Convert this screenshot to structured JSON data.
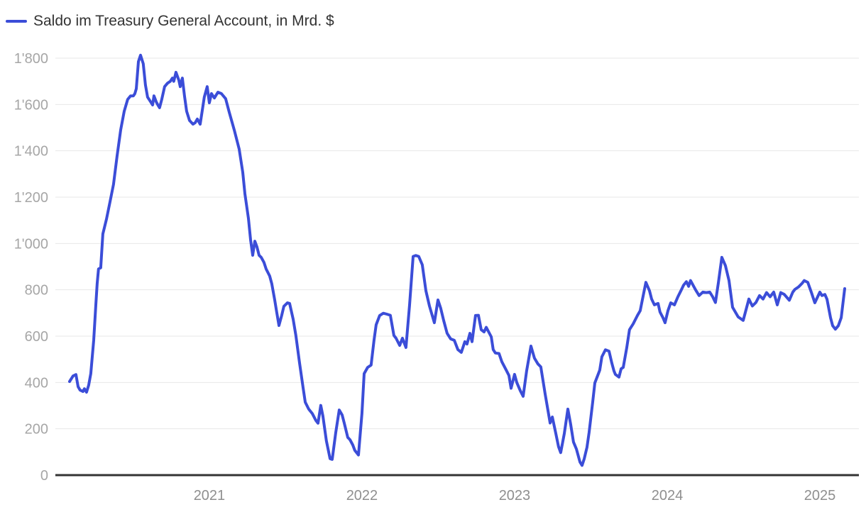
{
  "legend": {
    "label": "Saldo im Treasury General Account, in Mrd. $"
  },
  "colors": {
    "line": "#3b4dd8",
    "grid": "#e7e7e7",
    "axis": "#333333",
    "y_tick_text": "#a6a6a6",
    "x_tick_text": "#8f8f8f",
    "legend_text": "#333333",
    "background": "#ffffff"
  },
  "chart_data": {
    "type": "line",
    "title": "Saldo im Treasury General Account, in Mrd. $",
    "xlabel": "",
    "ylabel": "",
    "unit": "Mrd. $",
    "grid": "horizontal",
    "legend_position": "top-left",
    "xlim": [
      2019.991,
      2025.256
    ],
    "ylim": [
      0,
      1800
    ],
    "x_ticks": [
      2021,
      2022,
      2023,
      2024,
      2025
    ],
    "x_tick_labels": [
      "2021",
      "2022",
      "2023",
      "2024",
      "2025"
    ],
    "y_ticks": [
      0,
      200,
      400,
      600,
      800,
      1000,
      1200,
      1400,
      1600,
      1800
    ],
    "y_tick_labels": [
      "0",
      "200",
      "400",
      "600",
      "800",
      "1'000",
      "1'200",
      "1'400",
      "1'600",
      "1'800"
    ],
    "series": [
      {
        "name": "Saldo im Treasury General Account, in Mrd. $",
        "color": "#3b4dd8",
        "points": [
          [
            2020.084,
            404
          ],
          [
            2020.107,
            428
          ],
          [
            2020.126,
            434
          ],
          [
            2020.14,
            382
          ],
          [
            2020.153,
            367
          ],
          [
            2020.172,
            361
          ],
          [
            2020.181,
            373
          ],
          [
            2020.195,
            358
          ],
          [
            2020.209,
            388
          ],
          [
            2020.223,
            438
          ],
          [
            2020.242,
            582
          ],
          [
            2020.256,
            735
          ],
          [
            2020.265,
            827
          ],
          [
            2020.274,
            890
          ],
          [
            2020.288,
            895
          ],
          [
            2020.302,
            1041
          ],
          [
            2020.326,
            1105
          ],
          [
            2020.349,
            1180
          ],
          [
            2020.372,
            1255
          ],
          [
            2020.395,
            1377
          ],
          [
            2020.419,
            1490
          ],
          [
            2020.442,
            1571
          ],
          [
            2020.465,
            1622
          ],
          [
            2020.484,
            1637
          ],
          [
            2020.502,
            1637
          ],
          [
            2020.512,
            1647
          ],
          [
            2020.521,
            1668
          ],
          [
            2020.535,
            1785
          ],
          [
            2020.549,
            1813
          ],
          [
            2020.567,
            1776
          ],
          [
            2020.581,
            1684
          ],
          [
            2020.595,
            1632
          ],
          [
            2020.614,
            1613
          ],
          [
            2020.628,
            1598
          ],
          [
            2020.637,
            1637
          ],
          [
            2020.651,
            1613
          ],
          [
            2020.66,
            1601
          ],
          [
            2020.674,
            1586
          ],
          [
            2020.688,
            1622
          ],
          [
            2020.707,
            1677
          ],
          [
            2020.726,
            1692
          ],
          [
            2020.744,
            1700
          ],
          [
            2020.758,
            1714
          ],
          [
            2020.767,
            1700
          ],
          [
            2020.781,
            1739
          ],
          [
            2020.8,
            1705
          ],
          [
            2020.809,
            1677
          ],
          [
            2020.823,
            1714
          ],
          [
            2020.837,
            1637
          ],
          [
            2020.851,
            1571
          ],
          [
            2020.87,
            1531
          ],
          [
            2020.893,
            1515
          ],
          [
            2020.907,
            1521
          ],
          [
            2020.921,
            1537
          ],
          [
            2020.94,
            1515
          ],
          [
            2020.953,
            1571
          ],
          [
            2020.967,
            1632
          ],
          [
            2020.986,
            1677
          ],
          [
            2021.0,
            1607
          ],
          [
            2021.014,
            1647
          ],
          [
            2021.033,
            1628
          ],
          [
            2021.056,
            1653
          ],
          [
            2021.079,
            1647
          ],
          [
            2021.107,
            1625
          ],
          [
            2021.13,
            1567
          ],
          [
            2021.163,
            1490
          ],
          [
            2021.195,
            1408
          ],
          [
            2021.219,
            1307
          ],
          [
            2021.233,
            1215
          ],
          [
            2021.256,
            1108
          ],
          [
            2021.27,
            1016
          ],
          [
            2021.284,
            949
          ],
          [
            2021.298,
            1010
          ],
          [
            2021.312,
            985
          ],
          [
            2021.326,
            949
          ],
          [
            2021.34,
            940
          ],
          [
            2021.358,
            918
          ],
          [
            2021.372,
            890
          ],
          [
            2021.395,
            860
          ],
          [
            2021.409,
            826
          ],
          [
            2021.428,
            756
          ],
          [
            2021.442,
            700
          ],
          [
            2021.456,
            646
          ],
          [
            2021.474,
            690
          ],
          [
            2021.488,
            729
          ],
          [
            2021.512,
            744
          ],
          [
            2021.526,
            741
          ],
          [
            2021.549,
            673
          ],
          [
            2021.567,
            603
          ],
          [
            2021.591,
            484
          ],
          [
            2021.614,
            377
          ],
          [
            2021.628,
            315
          ],
          [
            2021.651,
            285
          ],
          [
            2021.674,
            266
          ],
          [
            2021.698,
            236
          ],
          [
            2021.712,
            224
          ],
          [
            2021.73,
            301
          ],
          [
            2021.744,
            255
          ],
          [
            2021.767,
            148
          ],
          [
            2021.791,
            71
          ],
          [
            2021.805,
            68
          ],
          [
            2021.828,
            184
          ],
          [
            2021.851,
            281
          ],
          [
            2021.87,
            260
          ],
          [
            2021.884,
            224
          ],
          [
            2021.907,
            163
          ],
          [
            2021.921,
            153
          ],
          [
            2021.94,
            130
          ],
          [
            2021.953,
            107
          ],
          [
            2021.977,
            87
          ],
          [
            2022.0,
            266
          ],
          [
            2022.014,
            438
          ],
          [
            2022.037,
            465
          ],
          [
            2022.06,
            475
          ],
          [
            2022.079,
            582
          ],
          [
            2022.093,
            649
          ],
          [
            2022.116,
            689
          ],
          [
            2022.14,
            699
          ],
          [
            2022.163,
            695
          ],
          [
            2022.186,
            690
          ],
          [
            2022.209,
            603
          ],
          [
            2022.223,
            591
          ],
          [
            2022.247,
            560
          ],
          [
            2022.265,
            591
          ],
          [
            2022.288,
            551
          ],
          [
            2022.312,
            735
          ],
          [
            2022.335,
            944
          ],
          [
            2022.353,
            948
          ],
          [
            2022.372,
            944
          ],
          [
            2022.395,
            908
          ],
          [
            2022.419,
            796
          ],
          [
            2022.442,
            730
          ],
          [
            2022.474,
            658
          ],
          [
            2022.498,
            756
          ],
          [
            2022.516,
            720
          ],
          [
            2022.535,
            668
          ],
          [
            2022.558,
            612
          ],
          [
            2022.581,
            588
          ],
          [
            2022.605,
            582
          ],
          [
            2022.628,
            542
          ],
          [
            2022.651,
            530
          ],
          [
            2022.674,
            576
          ],
          [
            2022.688,
            566
          ],
          [
            2022.707,
            612
          ],
          [
            2022.721,
            576
          ],
          [
            2022.744,
            689
          ],
          [
            2022.763,
            690
          ],
          [
            2022.781,
            628
          ],
          [
            2022.8,
            618
          ],
          [
            2022.814,
            638
          ],
          [
            2022.847,
            597
          ],
          [
            2022.86,
            542
          ],
          [
            2022.874,
            527
          ],
          [
            2022.898,
            525
          ],
          [
            2022.916,
            490
          ],
          [
            2022.944,
            455
          ],
          [
            2022.963,
            430
          ],
          [
            2022.977,
            375
          ],
          [
            2023.0,
            435
          ],
          [
            2023.014,
            400
          ],
          [
            2023.037,
            365
          ],
          [
            2023.056,
            340
          ],
          [
            2023.079,
            450
          ],
          [
            2023.107,
            557
          ],
          [
            2023.13,
            505
          ],
          [
            2023.153,
            480
          ],
          [
            2023.172,
            467
          ],
          [
            2023.2,
            350
          ],
          [
            2023.233,
            225
          ],
          [
            2023.247,
            251
          ],
          [
            2023.27,
            180
          ],
          [
            2023.288,
            122
          ],
          [
            2023.302,
            97
          ],
          [
            2023.326,
            180
          ],
          [
            2023.349,
            285
          ],
          [
            2023.367,
            220
          ],
          [
            2023.386,
            143
          ],
          [
            2023.405,
            113
          ],
          [
            2023.428,
            57
          ],
          [
            2023.442,
            42
          ],
          [
            2023.456,
            70
          ],
          [
            2023.474,
            120
          ],
          [
            2023.488,
            184
          ],
          [
            2023.512,
            316
          ],
          [
            2023.526,
            398
          ],
          [
            2023.558,
            453
          ],
          [
            2023.572,
            511
          ],
          [
            2023.595,
            541
          ],
          [
            2023.619,
            535
          ],
          [
            2023.637,
            484
          ],
          [
            2023.651,
            450
          ],
          [
            2023.66,
            435
          ],
          [
            2023.684,
            423
          ],
          [
            2023.698,
            459
          ],
          [
            2023.712,
            465
          ],
          [
            2023.735,
            551
          ],
          [
            2023.753,
            628
          ],
          [
            2023.777,
            653
          ],
          [
            2023.805,
            689
          ],
          [
            2023.823,
            710
          ],
          [
            2023.837,
            756
          ],
          [
            2023.86,
            832
          ],
          [
            2023.884,
            796
          ],
          [
            2023.898,
            760
          ],
          [
            2023.916,
            735
          ],
          [
            2023.94,
            741
          ],
          [
            2023.953,
            704
          ],
          [
            2023.972,
            680
          ],
          [
            2023.986,
            658
          ],
          [
            2024.005,
            710
          ],
          [
            2024.023,
            744
          ],
          [
            2024.047,
            735
          ],
          [
            2024.07,
            770
          ],
          [
            2024.093,
            800
          ],
          [
            2024.107,
            820
          ],
          [
            2024.126,
            835
          ],
          [
            2024.14,
            815
          ],
          [
            2024.153,
            840
          ],
          [
            2024.186,
            800
          ],
          [
            2024.209,
            775
          ],
          [
            2024.233,
            790
          ],
          [
            2024.256,
            788
          ],
          [
            2024.279,
            790
          ],
          [
            2024.298,
            770
          ],
          [
            2024.316,
            745
          ],
          [
            2024.335,
            830
          ],
          [
            2024.358,
            940
          ],
          [
            2024.381,
            905
          ],
          [
            2024.405,
            840
          ],
          [
            2024.428,
            725
          ],
          [
            2024.465,
            683
          ],
          [
            2024.498,
            668
          ],
          [
            2024.535,
            760
          ],
          [
            2024.558,
            730
          ],
          [
            2024.581,
            745
          ],
          [
            2024.605,
            775
          ],
          [
            2024.628,
            760
          ],
          [
            2024.651,
            788
          ],
          [
            2024.674,
            770
          ],
          [
            2024.698,
            790
          ],
          [
            2024.721,
            735
          ],
          [
            2024.744,
            788
          ],
          [
            2024.767,
            780
          ],
          [
            2024.8,
            755
          ],
          [
            2024.823,
            790
          ],
          [
            2024.837,
            802
          ],
          [
            2024.86,
            812
          ],
          [
            2024.884,
            828
          ],
          [
            2024.898,
            840
          ],
          [
            2024.921,
            832
          ],
          [
            2024.944,
            790
          ],
          [
            2024.967,
            744
          ],
          [
            2025.0,
            790
          ],
          [
            2025.014,
            775
          ],
          [
            2025.033,
            780
          ],
          [
            2025.047,
            759
          ],
          [
            2025.07,
            680
          ],
          [
            2025.084,
            645
          ],
          [
            2025.102,
            630
          ],
          [
            2025.121,
            645
          ],
          [
            2025.14,
            680
          ],
          [
            2025.163,
            805
          ]
        ]
      }
    ]
  }
}
